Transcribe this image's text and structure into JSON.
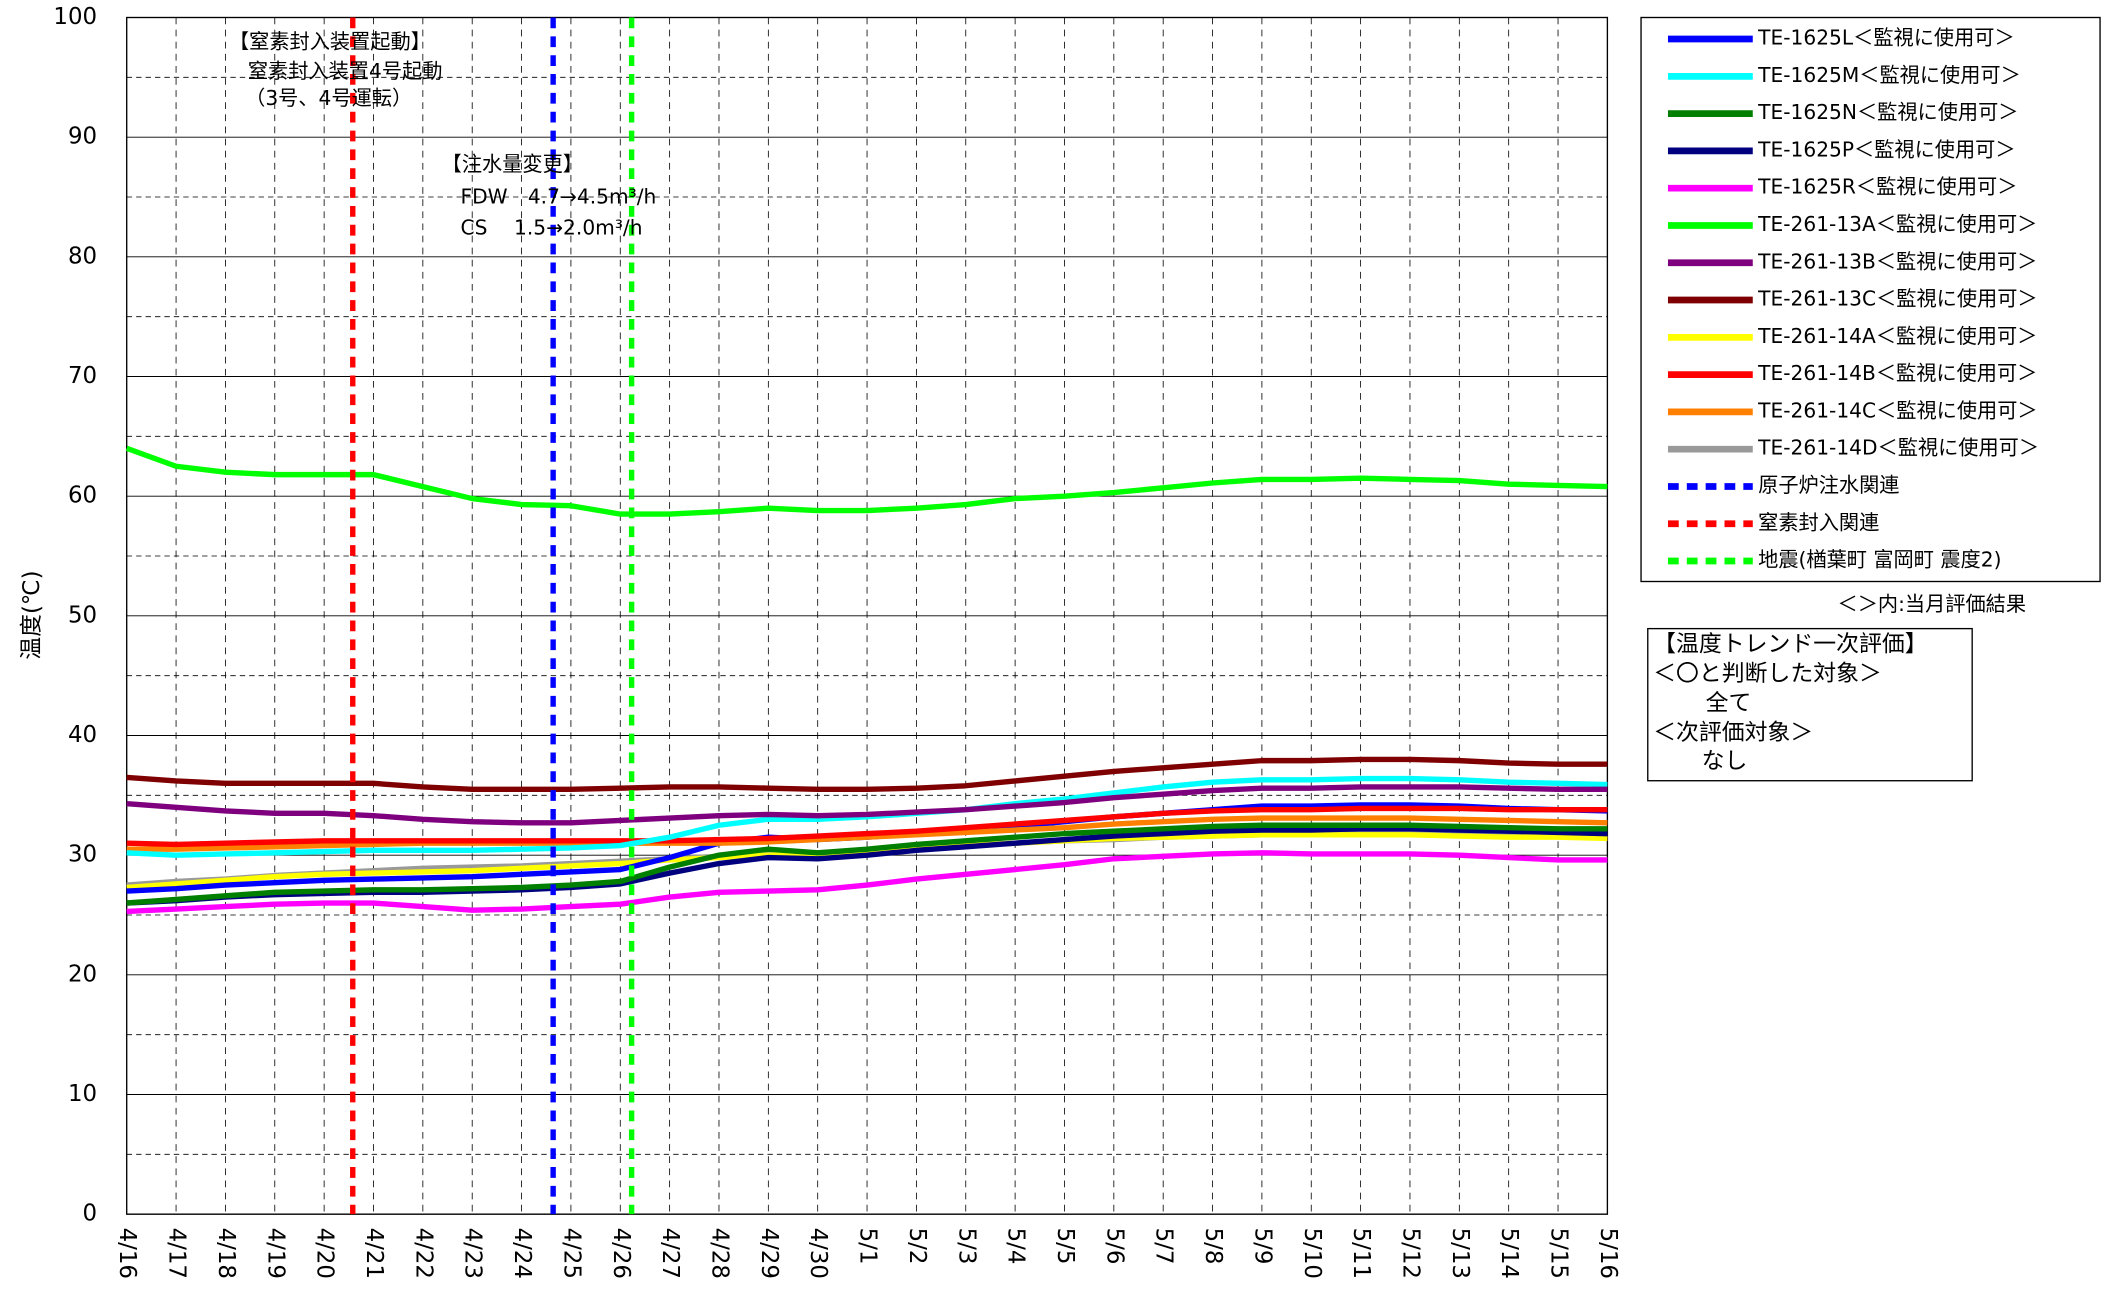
{
  "chart_data": {
    "type": "line",
    "y_label": "温度(℃)",
    "categories": [
      "4/16",
      "4/17",
      "4/18",
      "4/19",
      "4/20",
      "4/21",
      "4/22",
      "4/23",
      "4/24",
      "4/25",
      "4/26",
      "4/27",
      "4/28",
      "4/29",
      "4/30",
      "5/1",
      "5/2",
      "5/3",
      "5/4",
      "5/5",
      "5/6",
      "5/7",
      "5/8",
      "5/9",
      "5/10",
      "5/11",
      "5/12",
      "5/13",
      "5/14",
      "5/15",
      "5/16"
    ],
    "ylim": [
      0,
      100
    ],
    "yticks": [
      0,
      10,
      20,
      30,
      40,
      50,
      60,
      70,
      80,
      90,
      100
    ],
    "yminor": [
      5,
      15,
      25,
      35,
      45,
      55,
      65,
      75,
      85,
      95
    ],
    "grid": true,
    "legend": "right",
    "series": [
      {
        "name": "TE-1625L＜監視に使用可＞",
        "color": "#0000ff",
        "values": [
          27,
          27.2,
          27.5,
          27.7,
          27.9,
          28,
          28.1,
          28.2,
          28.4,
          28.6,
          28.8,
          29.8,
          31,
          31.5,
          31.3,
          31.5,
          31.8,
          32,
          32.4,
          32.8,
          33.2,
          33.5,
          33.8,
          34.1,
          34.1,
          34.2,
          34.2,
          34.1,
          33.9,
          33.8,
          33.7
        ]
      },
      {
        "name": "TE-1625M＜監視に使用可＞",
        "color": "#00ffff",
        "values": [
          30.2,
          30,
          30.1,
          30.2,
          30.3,
          30.4,
          30.4,
          30.4,
          30.5,
          30.6,
          30.8,
          31.5,
          32.5,
          33,
          33,
          33.2,
          33.5,
          33.8,
          34.3,
          34.7,
          35.2,
          35.7,
          36.1,
          36.3,
          36.3,
          36.4,
          36.4,
          36.3,
          36.1,
          36,
          35.9
        ]
      },
      {
        "name": "TE-1625N＜監視に使用可＞",
        "color": "#007f00",
        "values": [
          26,
          26.3,
          26.6,
          26.9,
          27,
          27.1,
          27.1,
          27.2,
          27.3,
          27.5,
          27.8,
          29,
          30,
          30.5,
          30.2,
          30.5,
          30.9,
          31.2,
          31.5,
          31.8,
          32,
          32.2,
          32.4,
          32.5,
          32.5,
          32.5,
          32.5,
          32.4,
          32.3,
          32.2,
          32.2
        ]
      },
      {
        "name": "TE-1625P＜監視に使用可＞",
        "color": "#00007f",
        "values": [
          26,
          26.2,
          26.5,
          26.7,
          26.8,
          26.9,
          26.9,
          27,
          27.1,
          27.3,
          27.6,
          28.5,
          29.3,
          29.8,
          29.7,
          30,
          30.4,
          30.7,
          31,
          31.3,
          31.6,
          31.8,
          32,
          32.1,
          32.1,
          32.2,
          32.2,
          32.1,
          32,
          31.9,
          31.8
        ]
      },
      {
        "name": "TE-1625R＜監視に使用可＞",
        "color": "#ff00ff",
        "values": [
          25.3,
          25.5,
          25.7,
          25.9,
          26,
          26,
          25.7,
          25.4,
          25.5,
          25.7,
          25.9,
          26.5,
          26.9,
          27,
          27.1,
          27.5,
          28,
          28.4,
          28.8,
          29.2,
          29.7,
          29.9,
          30.1,
          30.2,
          30.1,
          30.1,
          30.1,
          30,
          29.8,
          29.6,
          29.6
        ]
      },
      {
        "name": "TE-261-13A＜監視に使用可＞",
        "color": "#00ff00",
        "values": [
          64,
          62.5,
          62,
          61.8,
          61.8,
          61.8,
          60.8,
          59.8,
          59.3,
          59.2,
          58.5,
          58.5,
          58.7,
          59,
          58.8,
          58.8,
          59,
          59.3,
          59.8,
          60,
          60.3,
          60.7,
          61.1,
          61.4,
          61.4,
          61.5,
          61.4,
          61.3,
          61,
          60.9,
          60.8
        ]
      },
      {
        "name": "TE-261-13B＜監視に使用可＞",
        "color": "#7f007f",
        "values": [
          34.3,
          34,
          33.7,
          33.5,
          33.5,
          33.3,
          33,
          32.8,
          32.7,
          32.7,
          32.9,
          33.1,
          33.3,
          33.4,
          33.3,
          33.4,
          33.6,
          33.8,
          34.1,
          34.4,
          34.8,
          35.1,
          35.4,
          35.6,
          35.6,
          35.7,
          35.7,
          35.7,
          35.6,
          35.5,
          35.5
        ]
      },
      {
        "name": "TE-261-13C＜監視に使用可＞",
        "color": "#7f0000",
        "values": [
          36.5,
          36.2,
          36,
          36,
          36,
          36,
          35.7,
          35.5,
          35.5,
          35.5,
          35.6,
          35.7,
          35.7,
          35.6,
          35.5,
          35.5,
          35.6,
          35.8,
          36.2,
          36.6,
          37,
          37.3,
          37.6,
          37.9,
          37.9,
          38,
          38,
          37.9,
          37.7,
          37.6,
          37.6
        ]
      },
      {
        "name": "TE-261-14A＜監視に使用可＞",
        "color": "#ffff00",
        "values": [
          27.3,
          27.6,
          27.9,
          28.2,
          28.4,
          28.5,
          28.6,
          28.7,
          28.9,
          29.1,
          29.3,
          29.6,
          29.8,
          30,
          30.1,
          30.3,
          30.5,
          30.8,
          31,
          31.2,
          31.4,
          31.5,
          31.6,
          31.7,
          31.7,
          31.7,
          31.7,
          31.6,
          31.5,
          31.5,
          31.4
        ]
      },
      {
        "name": "TE-261-14B＜監視に使用可＞",
        "color": "#ff0000",
        "values": [
          31,
          30.9,
          31,
          31.1,
          31.2,
          31.2,
          31.2,
          31.2,
          31.2,
          31.2,
          31.2,
          31.2,
          31.3,
          31.4,
          31.6,
          31.8,
          32,
          32.3,
          32.6,
          32.9,
          33.2,
          33.5,
          33.7,
          33.8,
          33.8,
          33.9,
          33.9,
          33.9,
          33.8,
          33.8,
          33.8
        ]
      },
      {
        "name": "TE-261-14C＜監視に使用可＞",
        "color": "#ff7f00",
        "values": [
          30.5,
          30.5,
          30.6,
          30.7,
          30.8,
          30.9,
          31,
          31,
          31,
          31,
          31,
          31,
          31,
          31.1,
          31.3,
          31.5,
          31.7,
          31.9,
          32.1,
          32.3,
          32.6,
          32.8,
          33,
          33.1,
          33.1,
          33.1,
          33.1,
          33,
          32.9,
          32.8,
          32.7
        ]
      },
      {
        "name": "TE-261-14D＜監視に使用可＞",
        "color": "#999999",
        "values": [
          27.5,
          27.8,
          28,
          28.3,
          28.5,
          28.7,
          28.9,
          29,
          29.1,
          29.3,
          29.5,
          29.7,
          29.9,
          30.1,
          30.2,
          30.4,
          30.6,
          30.8,
          31,
          31.2,
          31.3,
          31.5,
          31.6,
          31.7,
          31.7,
          31.8,
          31.8,
          31.8,
          31.7,
          31.7,
          31.7
        ]
      }
    ],
    "events": [
      {
        "name": "原子炉注水関連",
        "color": "#0000ff",
        "x_index": 8.64
      },
      {
        "name": "窒素封入関連",
        "color": "#ff0000",
        "x_index": 4.58
      },
      {
        "name": "地震(楢葉町 富岡町 震度2)",
        "color": "#00ff00",
        "x_index": 10.23
      }
    ],
    "legend_note": "＜＞内:当月評価結果",
    "annotations": [
      "【窒素封入装置起動】",
      "窒素封入装置4号起動",
      "（3号、4号運転）",
      "【注水量変更】",
      "FDW　4.7→4.5m³/h",
      "CS　 1.5→2.0m³/h"
    ],
    "evaluation_box": [
      "【温度トレンド一次評価】",
      "＜〇と判断した対象＞",
      "全て",
      "＜次評価対象＞",
      "なし"
    ]
  }
}
